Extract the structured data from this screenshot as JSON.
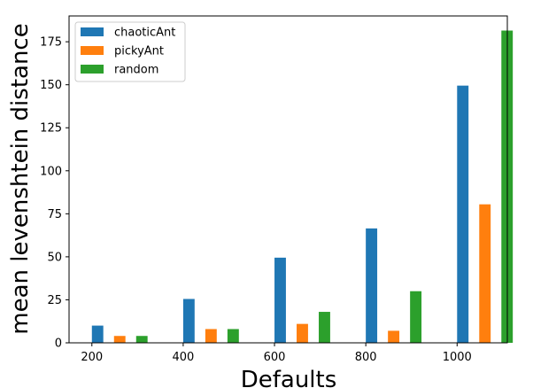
{
  "chart_data": {
    "type": "bar",
    "categories": [
      "200",
      "400",
      "600",
      "800",
      "1000"
    ],
    "x": [
      200,
      400,
      600,
      800,
      1000
    ],
    "series": [
      {
        "name": "chaoticAnt",
        "color": "#1f77b4",
        "values": [
          10,
          25.5,
          49.5,
          66.5,
          149.5
        ]
      },
      {
        "name": "pickyAnt",
        "color": "#ff7f0e",
        "values": [
          4,
          8,
          11,
          7,
          80.5
        ]
      },
      {
        "name": "random",
        "color": "#2ca02c",
        "values": [
          4,
          8,
          18,
          30,
          181.5
        ]
      }
    ],
    "xlabel": "Defaults",
    "ylabel": "mean levenshtein distance",
    "xticks": [
      "200",
      "400",
      "600",
      "800",
      "1000"
    ],
    "yticks": [
      "0",
      "25",
      "50",
      "75",
      "100",
      "125",
      "150",
      "175"
    ],
    "yticks_values": [
      0,
      25,
      50,
      75,
      100,
      125,
      150,
      175
    ],
    "xlim": [
      150,
      1110
    ],
    "ylim": [
      0,
      190
    ],
    "grid": false,
    "legend_position": "upper-left"
  }
}
